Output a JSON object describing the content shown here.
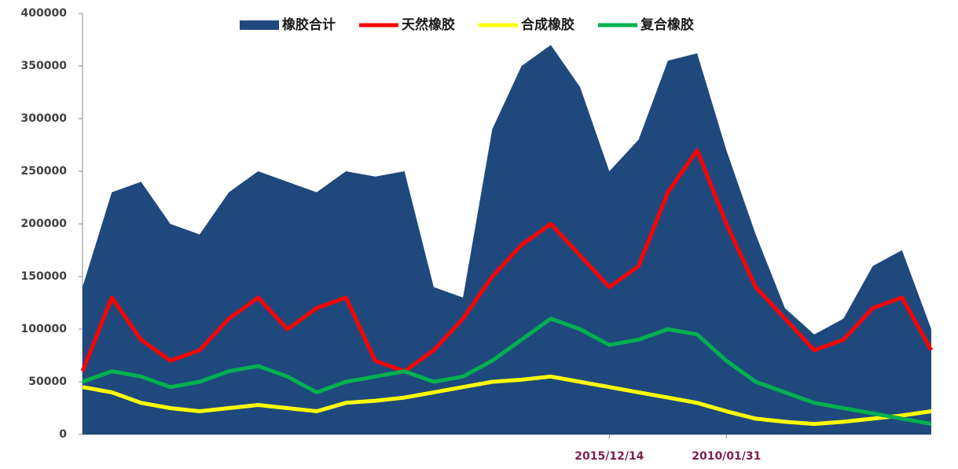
{
  "chart_data": {
    "type": "line",
    "categories": [
      null,
      null,
      null,
      null,
      null,
      null,
      null,
      null,
      null,
      null,
      null,
      null,
      null,
      null,
      null,
      null,
      null,
      null,
      "2015/12/14",
      null,
      null,
      null,
      "2010/01/31",
      null,
      null,
      null,
      null,
      null,
      null,
      null
    ],
    "series": [
      {
        "name": "橡胶合计",
        "type": "area",
        "color": "#1f497d",
        "values": [
          140000,
          230000,
          240000,
          200000,
          190000,
          230000,
          250000,
          240000,
          230000,
          250000,
          245000,
          250000,
          140000,
          130000,
          290000,
          350000,
          370000,
          330000,
          250000,
          280000,
          355000,
          362000,
          270000,
          190000,
          120000,
          95000,
          110000,
          160000,
          175000,
          100000
        ]
      },
      {
        "name": "天然橡胶",
        "type": "line",
        "color": "#ff0000",
        "values": [
          60000,
          130000,
          90000,
          70000,
          80000,
          110000,
          130000,
          100000,
          120000,
          130000,
          70000,
          60000,
          80000,
          110000,
          150000,
          180000,
          200000,
          170000,
          140000,
          160000,
          230000,
          270000,
          200000,
          140000,
          110000,
          80000,
          90000,
          120000,
          130000,
          80000
        ]
      },
      {
        "name": "合成橡胶",
        "type": "line",
        "color": "#ffff00",
        "values": [
          45000,
          40000,
          30000,
          25000,
          22000,
          25000,
          28000,
          25000,
          22000,
          30000,
          32000,
          35000,
          40000,
          45000,
          50000,
          52000,
          55000,
          50000,
          45000,
          40000,
          35000,
          30000,
          22000,
          15000,
          12000,
          10000,
          12000,
          15000,
          18000,
          22000
        ]
      },
      {
        "name": "复合橡胶",
        "type": "line",
        "color": "#00b050",
        "values": [
          50000,
          60000,
          55000,
          45000,
          50000,
          60000,
          65000,
          55000,
          40000,
          50000,
          55000,
          60000,
          50000,
          55000,
          70000,
          90000,
          110000,
          100000,
          85000,
          90000,
          100000,
          95000,
          70000,
          50000,
          40000,
          30000,
          25000,
          20000,
          15000,
          10000
        ]
      }
    ],
    "ylim": [
      0,
      400000
    ],
    "yticks": [
      0,
      50000,
      100000,
      150000,
      200000,
      250000,
      300000,
      350000,
      400000
    ]
  }
}
